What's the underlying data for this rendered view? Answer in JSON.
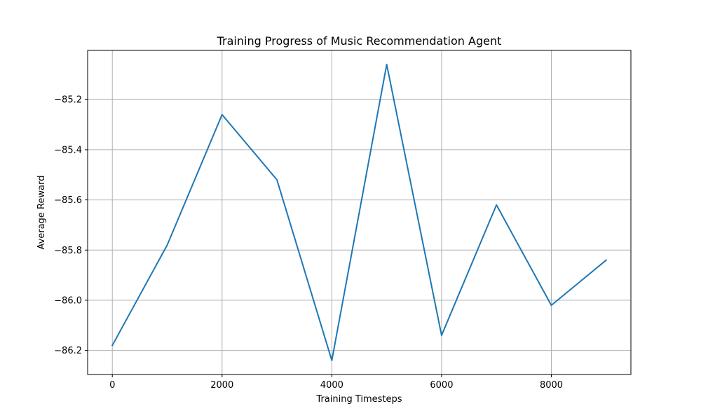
{
  "chart_data": {
    "type": "line",
    "title": "Training Progress of Music Recommendation Agent",
    "xlabel": "Training Timesteps",
    "ylabel": "Average Reward",
    "x": [
      0,
      1000,
      2000,
      3000,
      4000,
      5000,
      6000,
      7000,
      8000,
      9000
    ],
    "series": [
      {
        "values": [
          -86.18,
          -85.78,
          -85.26,
          -85.52,
          -86.24,
          -85.06,
          -86.14,
          -85.62,
          -86.02,
          -85.84
        ],
        "color": "#1f77b4"
      }
    ],
    "xlim": [
      -450,
      9450
    ],
    "ylim": [
      -86.296,
      -85.004
    ],
    "xticks": [
      0,
      2000,
      4000,
      6000,
      8000
    ],
    "xtick_labels": [
      "0",
      "2000",
      "4000",
      "6000",
      "8000"
    ],
    "yticks": [
      -86.2,
      -86.0,
      -85.8,
      -85.6,
      -85.4,
      -85.2
    ],
    "ytick_labels": [
      "−86.2",
      "−86.0",
      "−85.8",
      "−85.6",
      "−85.4",
      "−85.2"
    ],
    "grid": true,
    "legend": "none"
  }
}
